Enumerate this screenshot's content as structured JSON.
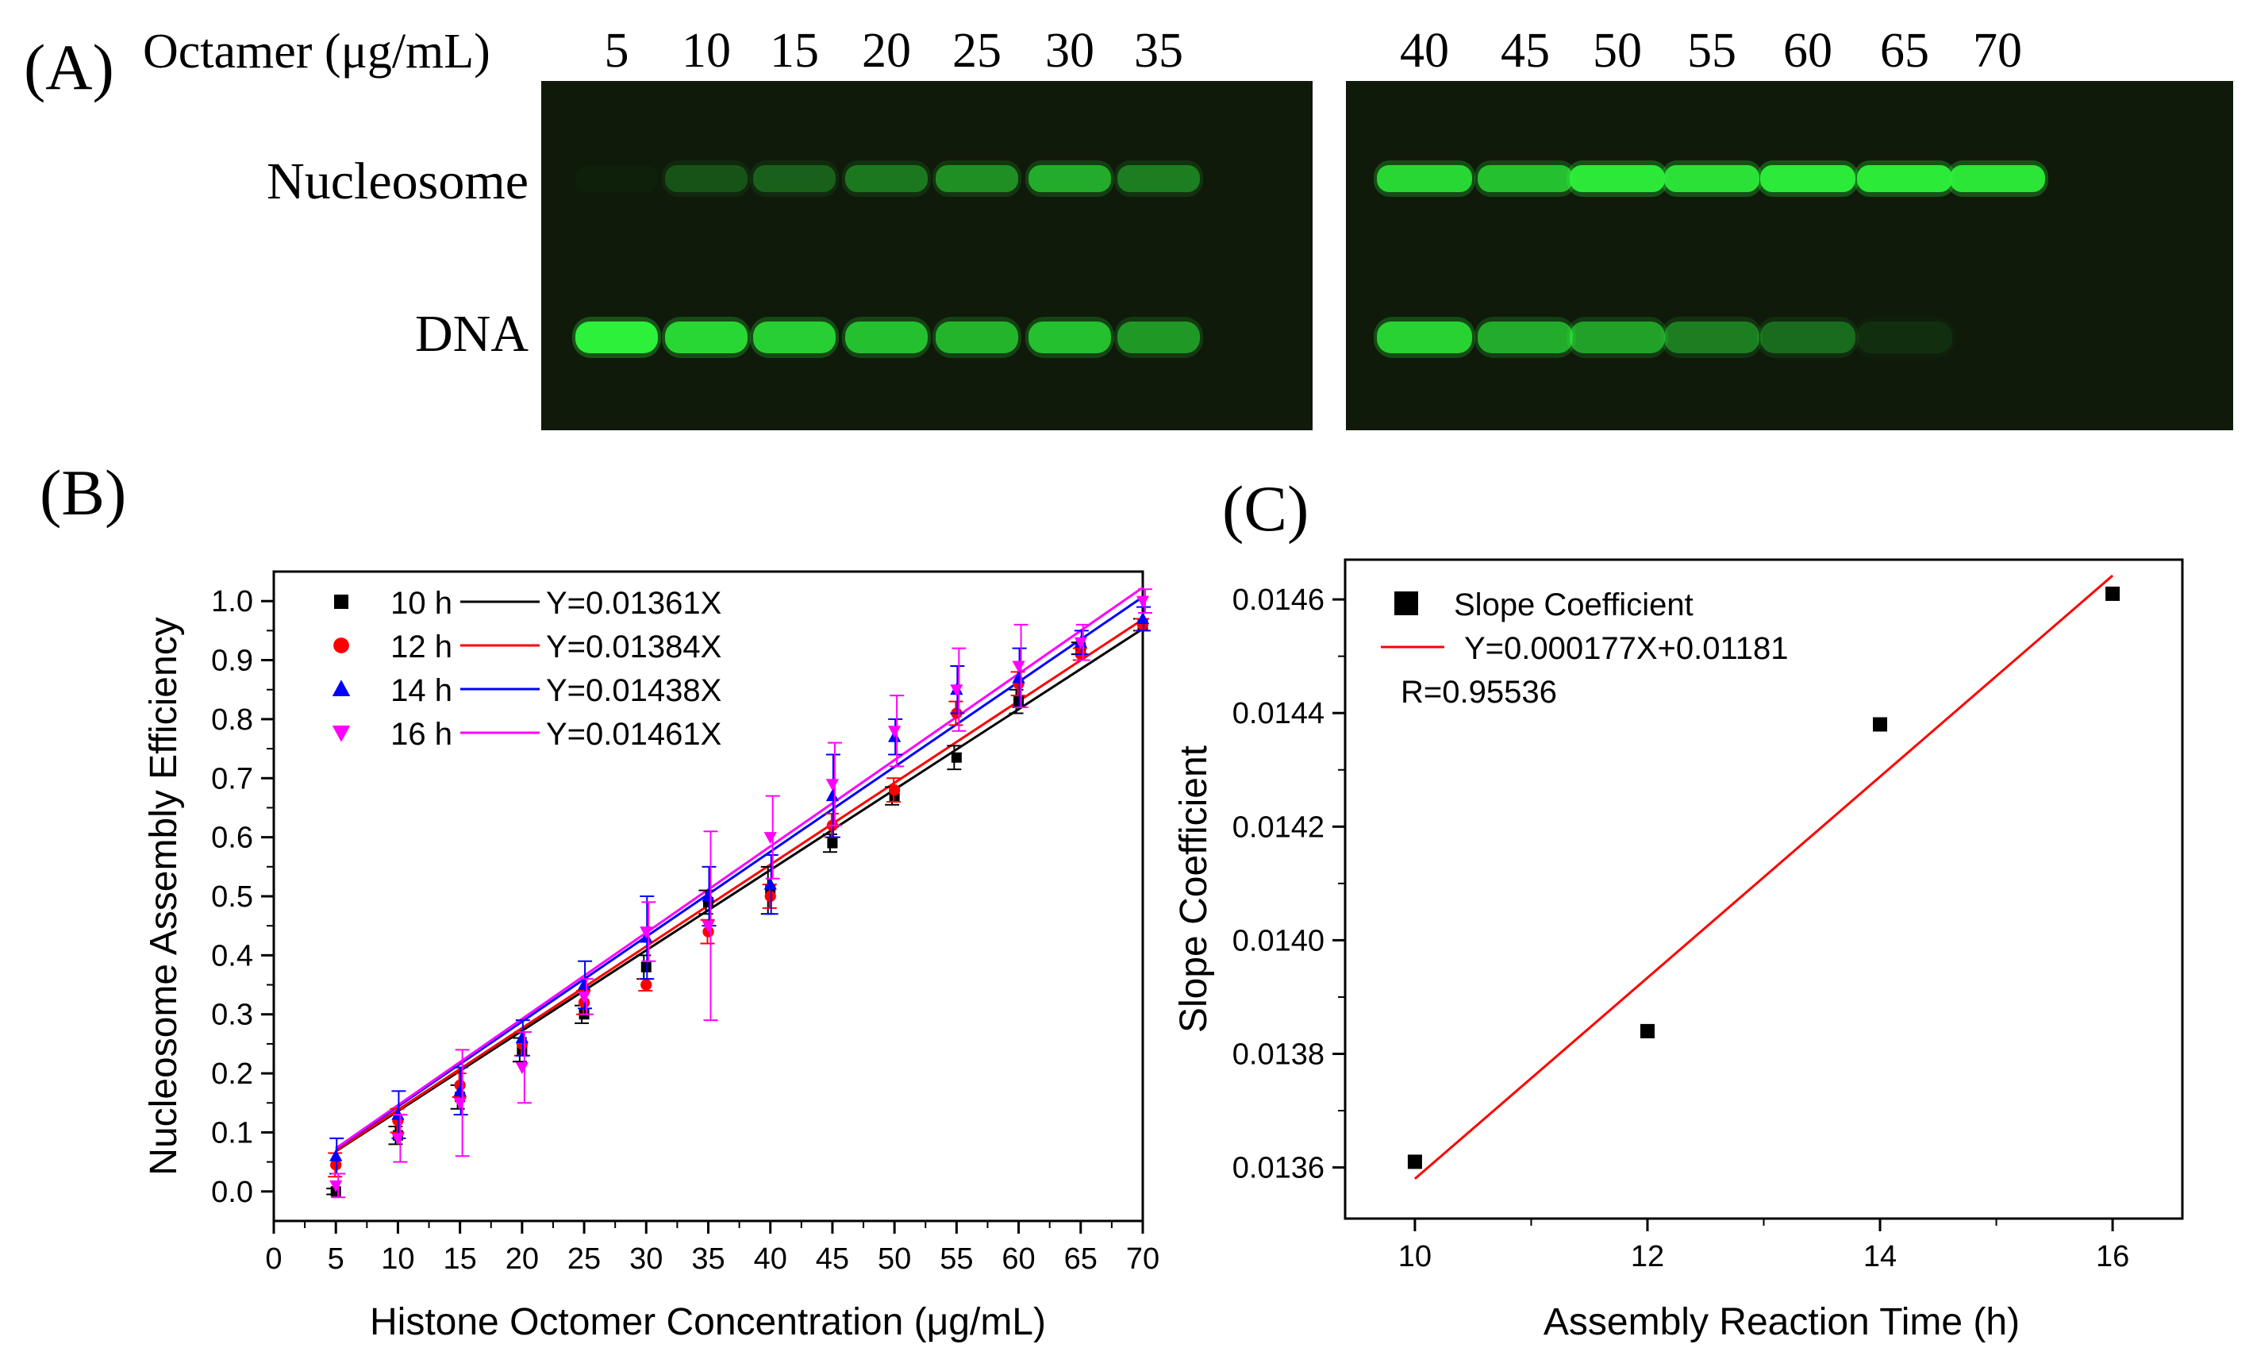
{
  "panel_a": {
    "label": "(A)",
    "row_title": "Octamer (μg/mL)",
    "lanes_left": [
      "5",
      "10",
      "15",
      "20",
      "25",
      "30",
      "35"
    ],
    "lanes_right": [
      "40",
      "45",
      "50",
      "55",
      "60",
      "65",
      "70"
    ],
    "band_labels": {
      "nucleosome": "Nucleosome",
      "dna": "DNA"
    },
    "gel_background": "#0f1a0b",
    "band_color": "#2df03a",
    "nucleosome_intensity": [
      0.02,
      0.22,
      0.28,
      0.38,
      0.48,
      0.62,
      0.4,
      0.85,
      0.72,
      0.95,
      0.9,
      0.96,
      0.97,
      0.93
    ],
    "dna_intensity": [
      1.0,
      0.85,
      0.8,
      0.72,
      0.66,
      0.72,
      0.52,
      0.82,
      0.62,
      0.56,
      0.4,
      0.32,
      0.08,
      0.0
    ]
  },
  "chart_data": [
    {
      "panel_label": "(B)",
      "type": "scatter",
      "xlabel": "Histone Octomer Concentration (μg/mL)",
      "ylabel": "Nucleosome Assembly Efficiency",
      "xlim": [
        0,
        70
      ],
      "ylim": [
        -0.05,
        1.05
      ],
      "xticks": [
        0,
        5,
        10,
        15,
        20,
        25,
        30,
        35,
        40,
        45,
        50,
        55,
        60,
        65,
        70
      ],
      "yticks": [
        0.0,
        0.1,
        0.2,
        0.3,
        0.4,
        0.5,
        0.6,
        0.7,
        0.8,
        0.9,
        1.0
      ],
      "ytick_labels": [
        "0.0",
        "0.1",
        "0.2",
        "0.3",
        "0.4",
        "0.5",
        "0.6",
        "0.7",
        "0.8",
        "0.9",
        "1.0"
      ],
      "legend_position": "top-left",
      "x": [
        5,
        10,
        15,
        20,
        25,
        30,
        35,
        40,
        45,
        50,
        55,
        60,
        65,
        70
      ],
      "series": [
        {
          "name": "10 h",
          "marker": "square",
          "color": "#000000",
          "fit_label": "Y=0.01361X",
          "fit_line": [
            [
              5,
              0.068
            ],
            [
              70,
              0.953
            ]
          ],
          "values": [
            0.0,
            0.095,
            0.16,
            0.24,
            0.3,
            0.38,
            0.49,
            0.51,
            0.59,
            0.67,
            0.735,
            0.83,
            0.92,
            0.96
          ],
          "errors": [
            0.005,
            0.015,
            0.02,
            0.02,
            0.015,
            0.02,
            0.02,
            0.04,
            0.015,
            0.015,
            0.02,
            0.02,
            0.01,
            0.01
          ]
        },
        {
          "name": "12 h",
          "marker": "circle",
          "color": "#ff0000",
          "fit_label": "Y=0.01384X",
          "fit_line": [
            [
              5,
              0.069
            ],
            [
              70,
              0.969
            ]
          ],
          "values": [
            0.045,
            0.12,
            0.18,
            0.25,
            0.32,
            0.35,
            0.44,
            0.5,
            0.62,
            0.68,
            0.81,
            0.86,
            0.91,
            0.96
          ],
          "errors": [
            0.02,
            0.02,
            0.02,
            0.02,
            0.02,
            0.01,
            0.02,
            0.02,
            0.02,
            0.02,
            0.02,
            0.02,
            0.01,
            0.01
          ]
        },
        {
          "name": "14 h",
          "marker": "triangle-up",
          "color": "#0000ff",
          "fit_label": "Y=0.01438X",
          "fit_line": [
            [
              5,
              0.072
            ],
            [
              70,
              1.007
            ]
          ],
          "values": [
            0.06,
            0.13,
            0.17,
            0.26,
            0.35,
            0.43,
            0.5,
            0.52,
            0.67,
            0.77,
            0.85,
            0.87,
            0.93,
            0.97
          ],
          "errors": [
            0.03,
            0.04,
            0.04,
            0.03,
            0.04,
            0.07,
            0.05,
            0.05,
            0.07,
            0.03,
            0.04,
            0.05,
            0.02,
            0.02
          ]
        },
        {
          "name": "16 h",
          "marker": "triangle-down",
          "color": "#ff00ff",
          "fit_label": "Y=0.01461X",
          "fit_line": [
            [
              5,
              0.073
            ],
            [
              70,
              1.023
            ]
          ],
          "values": [
            0.01,
            0.09,
            0.15,
            0.21,
            0.33,
            0.44,
            0.45,
            0.6,
            0.69,
            0.78,
            0.85,
            0.89,
            0.93,
            1.0
          ],
          "errors": [
            0.02,
            0.04,
            0.09,
            0.06,
            0.03,
            0.05,
            0.16,
            0.07,
            0.07,
            0.06,
            0.07,
            0.07,
            0.03,
            0.02
          ]
        }
      ]
    },
    {
      "panel_label": "(C)",
      "type": "scatter",
      "xlabel": "Assembly Reaction Time (h)",
      "ylabel": "Slope Coefficient",
      "xlim": [
        9.4,
        16.6
      ],
      "ylim": [
        0.01351,
        0.01467
      ],
      "xticks": [
        10,
        12,
        14,
        16
      ],
      "xtick_labels": [
        "10",
        "12",
        "14",
        "16"
      ],
      "yticks": [
        0.0136,
        0.0138,
        0.014,
        0.0142,
        0.0144,
        0.0146
      ],
      "ytick_labels": [
        "0.0136",
        "0.0138",
        "0.0140",
        "0.0142",
        "0.0144",
        "0.0146"
      ],
      "legend_position": "top-left",
      "legend": {
        "series_name": "Slope Coefficient",
        "fit_label": "Y=0.000177X+0.01181",
        "r_label": "R=0.95536"
      },
      "x": [
        10,
        12,
        14,
        16
      ],
      "values": [
        0.01361,
        0.01384,
        0.01438,
        0.01461
      ],
      "marker_color": "#000000",
      "fit_color": "#ff0000",
      "fit_line": [
        [
          10,
          0.01358
        ],
        [
          16,
          0.014642
        ]
      ]
    }
  ]
}
